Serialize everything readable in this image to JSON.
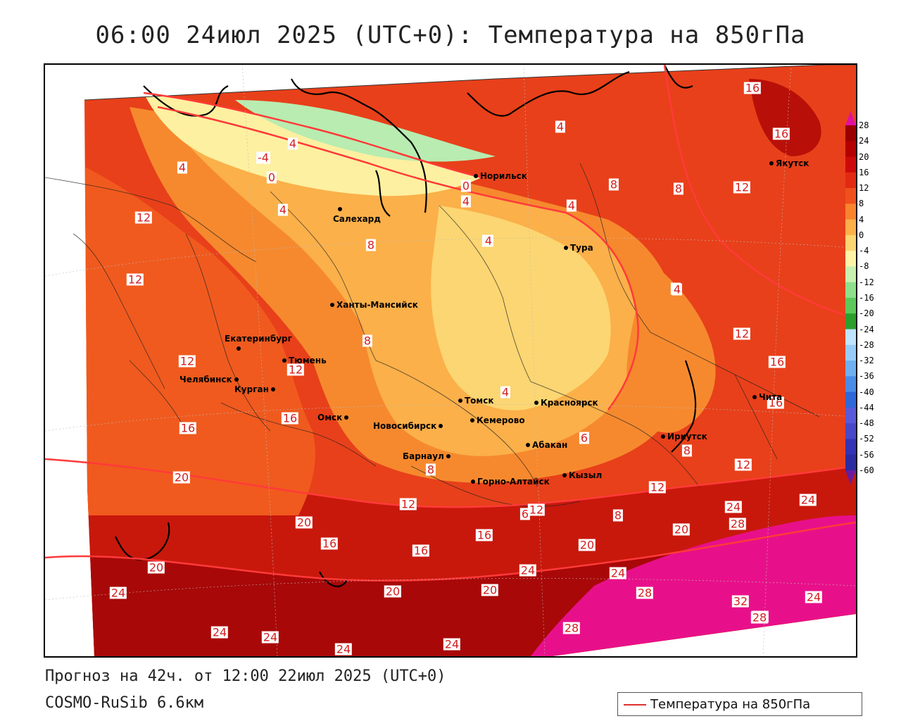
{
  "title": "06:00 24июл 2025 (UTC+0): Температура на 850гПа",
  "forecast_line": "Прогноз на 42ч. от 12:00 22июл 2025 (UTC+0)",
  "model_line": "COSMO-RuSib 6.6км",
  "legend": {
    "entry": "Температура на 850гПа",
    "color": "#e03030"
  },
  "colorbar": {
    "ticks": [
      "28",
      "24",
      "20",
      "16",
      "12",
      "8",
      "4",
      "0",
      "-4",
      "-8",
      "-12",
      "-16",
      "-20",
      "-24",
      "-28",
      "-32",
      "-36",
      "-40",
      "-44",
      "-48",
      "-52",
      "-56",
      "-60"
    ],
    "colors": [
      "#9a0000",
      "#b40000",
      "#cc0a0a",
      "#e22a12",
      "#f0501e",
      "#f8842e",
      "#fbb04a",
      "#fcd672",
      "#fdf4a8",
      "#c8f0b0",
      "#8ee08c",
      "#5cc85c",
      "#2c9e2c",
      "#bfe4ff",
      "#98ccf8",
      "#70b0f0",
      "#4a8ce6",
      "#3068d8",
      "#5a5ad8",
      "#4848c8",
      "#3434b4",
      "#2c2ca0",
      "#6a1aa0"
    ]
  },
  "cities": [
    {
      "name": "Норильск",
      "label_side": "right"
    },
    {
      "name": "Якутск",
      "label_side": "right"
    },
    {
      "name": "Салехард",
      "label_side": "below"
    },
    {
      "name": "Тура",
      "label_side": "right"
    },
    {
      "name": "Ханты-Мансийск",
      "label_side": "right"
    },
    {
      "name": "Екатеринбург",
      "label_side": "above"
    },
    {
      "name": "Тюмень",
      "label_side": "right"
    },
    {
      "name": "Челябинск",
      "label_side": "left"
    },
    {
      "name": "Курган",
      "label_side": "left"
    },
    {
      "name": "Омск",
      "label_side": "left"
    },
    {
      "name": "Томск",
      "label_side": "right"
    },
    {
      "name": "Новосибирск",
      "label_side": "left"
    },
    {
      "name": "Кемерово",
      "label_side": "right"
    },
    {
      "name": "Красноярск",
      "label_side": "right"
    },
    {
      "name": "Абакан",
      "label_side": "right"
    },
    {
      "name": "Барнаул",
      "label_side": "left"
    },
    {
      "name": "Горно-Алтайск",
      "label_side": "right"
    },
    {
      "name": "Кызыл",
      "label_side": "right"
    },
    {
      "name": "Иркутск",
      "label_side": "right"
    },
    {
      "name": "Чита",
      "label_side": "right"
    }
  ],
  "contour_labels": [
    "16",
    "16",
    "4",
    "-4",
    "4",
    "0",
    "4",
    "0",
    "4",
    "4",
    "4",
    "8",
    "12",
    "12",
    "8",
    "4",
    "4",
    "8",
    "4",
    "12",
    "12",
    "16",
    "8",
    "4",
    "12",
    "12",
    "16",
    "16",
    "4",
    "8",
    "6",
    "8",
    "12",
    "20",
    "20",
    "20",
    "20",
    "16",
    "16",
    "16",
    "12",
    "12",
    "6",
    "12",
    "8",
    "16",
    "20",
    "24",
    "28",
    "20",
    "24",
    "24",
    "20",
    "20",
    "24",
    "28",
    "28",
    "32",
    "28",
    "24",
    "24",
    "24",
    "24",
    "24",
    "24",
    "28"
  ]
}
